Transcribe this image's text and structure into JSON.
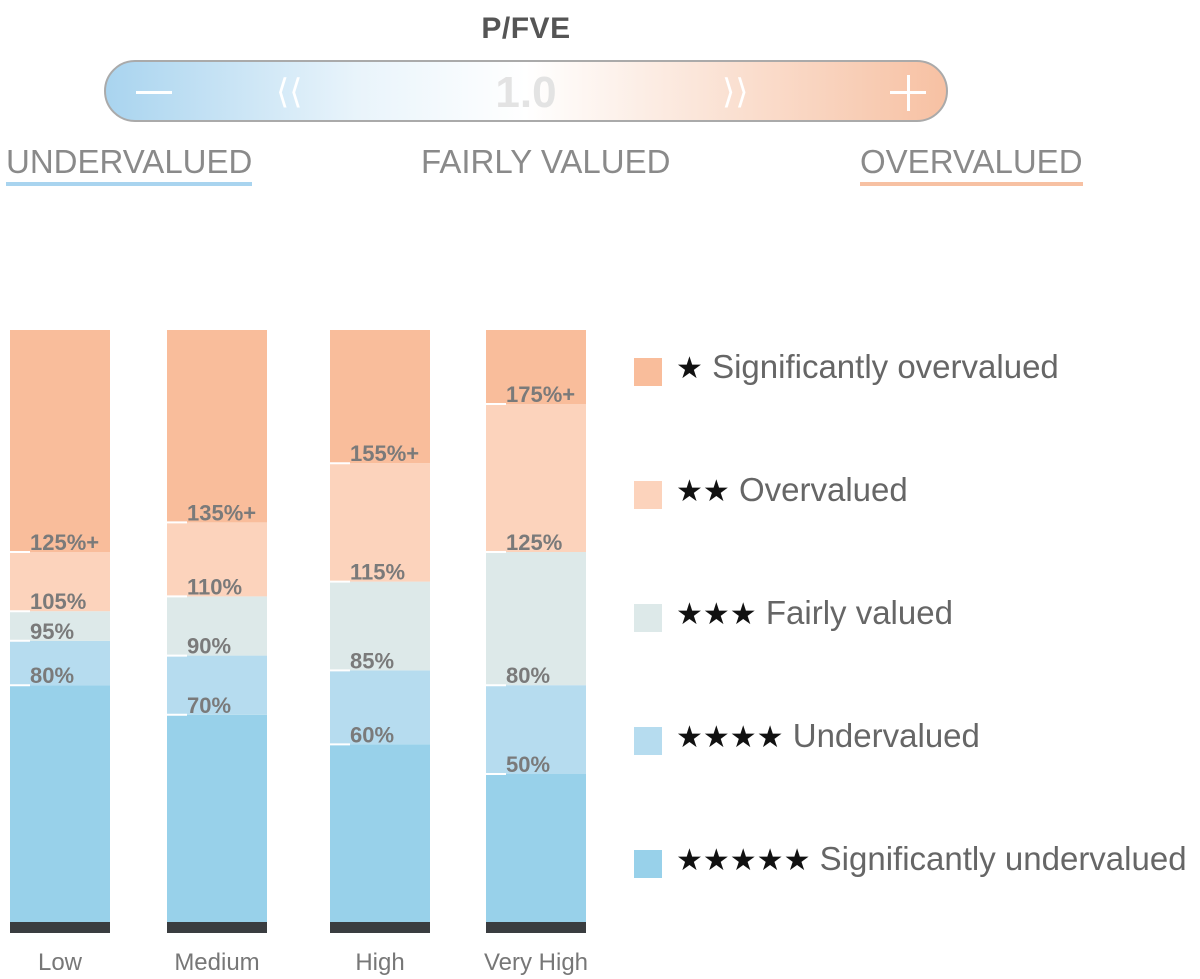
{
  "scale": {
    "title": "P/FVE",
    "center_value": "1.0",
    "minus_icon": "minus-icon",
    "plus_icon": "plus-icon",
    "chevron_left": "⟨⟨",
    "chevron_right": "⟩⟩",
    "left_label": "UNDERVALUED",
    "center_label": "FAIRLY VALUED",
    "right_label": "OVERVALUED",
    "left_color": "#a9d4ef",
    "right_color": "#f7c1a3"
  },
  "chart_data": {
    "type": "bar",
    "stacked": true,
    "categories": [
      "Low",
      "Medium",
      "High",
      "Very High"
    ],
    "ylim": [
      0,
      200
    ],
    "thresholds": [
      {
        "category": "Low",
        "values": [
          80,
          95,
          105,
          125
        ],
        "labels": [
          "80%",
          "95%",
          "105%",
          "125%+"
        ]
      },
      {
        "category": "Medium",
        "values": [
          70,
          90,
          110,
          135
        ],
        "labels": [
          "70%",
          "90%",
          "110%",
          "135%+"
        ]
      },
      {
        "category": "High",
        "values": [
          60,
          85,
          115,
          155
        ],
        "labels": [
          "60%",
          "85%",
          "115%",
          "155%+"
        ]
      },
      {
        "category": "Very High",
        "values": [
          50,
          80,
          125,
          175
        ],
        "labels": [
          "50%",
          "80%",
          "125%",
          "175%+"
        ]
      }
    ],
    "series": [
      {
        "name": "Significantly undervalued",
        "stars": "★★★★★",
        "color": "#98d1ea"
      },
      {
        "name": "Undervalued",
        "stars": "★★★★",
        "color": "#b6dcef"
      },
      {
        "name": "Fairly valued",
        "stars": "★★★",
        "color": "#dde9e9"
      },
      {
        "name": "Overvalued",
        "stars": "★★",
        "color": "#fcd3bc"
      },
      {
        "name": "Significantly overvalued",
        "stars": "★",
        "color": "#f9bd9b"
      }
    ],
    "base_color": "#3a3d40",
    "legend_position": "right"
  }
}
